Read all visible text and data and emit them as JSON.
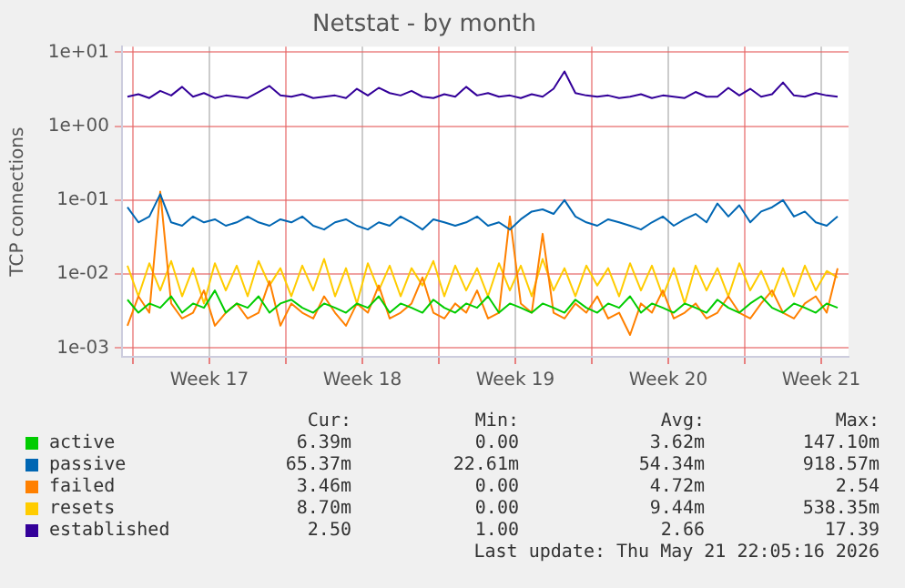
{
  "chart_data": {
    "type": "line",
    "title": "Netstat - by month",
    "ylabel": "TCP connections",
    "log": true,
    "grid": true,
    "legend": "bottom",
    "marker": "none",
    "line_style": "solid",
    "xlim": [
      "2026-04-19T12:00",
      "2026-05-22T18:00"
    ],
    "xticks": [
      {
        "value": "2026-04-20T00:00",
        "label": null
      },
      {
        "value": "2026-04-23T12:00",
        "label": "Week 17"
      },
      {
        "value": "2026-04-27T00:00",
        "label": null
      },
      {
        "value": "2026-04-30T12:00",
        "label": "Week 18"
      },
      {
        "value": "2026-05-04T00:00",
        "label": null
      },
      {
        "value": "2026-05-07T12:00",
        "label": "Week 19"
      },
      {
        "value": "2026-05-11T00:00",
        "label": null
      },
      {
        "value": "2026-05-14T12:00",
        "label": "Week 20"
      },
      {
        "value": "2026-05-18T00:00",
        "label": null
      },
      {
        "value": "2026-05-21T12:00",
        "label": "Week 21"
      }
    ],
    "ylim": [
      0.00076,
      11.9
    ],
    "yticks": [
      {
        "value": 0.001,
        "label": "1e-03"
      },
      {
        "value": 0.01,
        "label": "1e-02"
      },
      {
        "value": 0.1,
        "label": "1e-01"
      },
      {
        "value": 1,
        "label": "1e+00"
      },
      {
        "value": 10,
        "label": "1e+01"
      }
    ],
    "x": [
      "2026-04-19T18:00",
      "2026-04-20T06:00",
      "2026-04-20T18:00",
      "2026-04-21T06:00",
      "2026-04-21T18:00",
      "2026-04-22T06:00",
      "2026-04-22T18:00",
      "2026-04-23T06:00",
      "2026-04-23T18:00",
      "2026-04-24T06:00",
      "2026-04-24T18:00",
      "2026-04-25T06:00",
      "2026-04-25T18:00",
      "2026-04-26T06:00",
      "2026-04-26T18:00",
      "2026-04-27T06:00",
      "2026-04-27T18:00",
      "2026-04-28T06:00",
      "2026-04-28T18:00",
      "2026-04-29T06:00",
      "2026-04-29T18:00",
      "2026-04-30T06:00",
      "2026-04-30T18:00",
      "2026-05-01T06:00",
      "2026-05-01T18:00",
      "2026-05-02T06:00",
      "2026-05-02T18:00",
      "2026-05-03T06:00",
      "2026-05-03T18:00",
      "2026-05-04T06:00",
      "2026-05-04T18:00",
      "2026-05-05T06:00",
      "2026-05-05T18:00",
      "2026-05-06T06:00",
      "2026-05-06T18:00",
      "2026-05-07T06:00",
      "2026-05-07T18:00",
      "2026-05-08T06:00",
      "2026-05-08T18:00",
      "2026-05-09T06:00",
      "2026-05-09T18:00",
      "2026-05-10T06:00",
      "2026-05-10T18:00",
      "2026-05-11T06:00",
      "2026-05-11T18:00",
      "2026-05-12T06:00",
      "2026-05-12T18:00",
      "2026-05-13T06:00",
      "2026-05-13T18:00",
      "2026-05-14T06:00",
      "2026-05-14T18:00",
      "2026-05-15T06:00",
      "2026-05-15T18:00",
      "2026-05-16T06:00",
      "2026-05-16T18:00",
      "2026-05-17T06:00",
      "2026-05-17T18:00",
      "2026-05-18T06:00",
      "2026-05-18T18:00",
      "2026-05-19T06:00",
      "2026-05-19T18:00",
      "2026-05-20T06:00",
      "2026-05-20T18:00",
      "2026-05-21T06:00",
      "2026-05-21T18:00",
      "2026-05-22T06:00"
    ],
    "series": [
      {
        "name": "active",
        "color": "#00cc00",
        "values": [
          0.0045,
          0.003,
          0.004,
          0.0035,
          0.005,
          0.003,
          0.004,
          0.0035,
          0.006,
          0.003,
          0.004,
          0.0035,
          0.005,
          0.003,
          0.004,
          0.0045,
          0.0035,
          0.003,
          0.004,
          0.0035,
          0.003,
          0.004,
          0.0035,
          0.005,
          0.003,
          0.004,
          0.0035,
          0.003,
          0.0045,
          0.0035,
          0.003,
          0.004,
          0.0035,
          0.005,
          0.003,
          0.004,
          0.0035,
          0.003,
          0.004,
          0.0035,
          0.003,
          0.0045,
          0.0035,
          0.003,
          0.004,
          0.0035,
          0.005,
          0.003,
          0.004,
          0.0035,
          0.003,
          0.004,
          0.0035,
          0.003,
          0.0045,
          0.0035,
          0.003,
          0.004,
          0.005,
          0.0035,
          0.003,
          0.004,
          0.0035,
          0.003,
          0.004,
          0.0035
        ]
      },
      {
        "name": "passive",
        "color": "#0066b3",
        "values": [
          0.08,
          0.05,
          0.06,
          0.12,
          0.05,
          0.045,
          0.06,
          0.05,
          0.055,
          0.045,
          0.05,
          0.06,
          0.05,
          0.045,
          0.055,
          0.05,
          0.06,
          0.045,
          0.04,
          0.05,
          0.055,
          0.045,
          0.04,
          0.05,
          0.045,
          0.06,
          0.05,
          0.04,
          0.055,
          0.05,
          0.045,
          0.05,
          0.06,
          0.045,
          0.05,
          0.04,
          0.055,
          0.07,
          0.075,
          0.065,
          0.1,
          0.06,
          0.05,
          0.045,
          0.055,
          0.05,
          0.045,
          0.04,
          0.05,
          0.06,
          0.045,
          0.055,
          0.065,
          0.05,
          0.09,
          0.06,
          0.085,
          0.05,
          0.07,
          0.08,
          0.1,
          0.06,
          0.07,
          0.05,
          0.045,
          0.06
        ]
      },
      {
        "name": "failed",
        "color": "#ff8000",
        "values": [
          0.002,
          0.005,
          0.003,
          0.13,
          0.004,
          0.0025,
          0.003,
          0.006,
          0.002,
          0.003,
          0.004,
          0.0025,
          0.003,
          0.008,
          0.002,
          0.004,
          0.003,
          0.0025,
          0.005,
          0.003,
          0.002,
          0.004,
          0.003,
          0.007,
          0.0025,
          0.003,
          0.004,
          0.009,
          0.003,
          0.0025,
          0.004,
          0.003,
          0.006,
          0.0025,
          0.003,
          0.06,
          0.004,
          0.003,
          0.035,
          0.003,
          0.0025,
          0.004,
          0.003,
          0.005,
          0.0025,
          0.003,
          0.0015,
          0.004,
          0.003,
          0.006,
          0.0025,
          0.003,
          0.004,
          0.0025,
          0.003,
          0.005,
          0.003,
          0.0025,
          0.004,
          0.006,
          0.003,
          0.0025,
          0.004,
          0.005,
          0.003,
          0.012
        ]
      },
      {
        "name": "resets",
        "color": "#ffcc00",
        "values": [
          0.013,
          0.005,
          0.014,
          0.006,
          0.015,
          0.005,
          0.012,
          0.004,
          0.014,
          0.006,
          0.013,
          0.005,
          0.015,
          0.007,
          0.012,
          0.005,
          0.013,
          0.006,
          0.016,
          0.005,
          0.012,
          0.004,
          0.014,
          0.006,
          0.013,
          0.005,
          0.012,
          0.007,
          0.015,
          0.005,
          0.013,
          0.006,
          0.012,
          0.005,
          0.014,
          0.006,
          0.013,
          0.005,
          0.016,
          0.006,
          0.012,
          0.005,
          0.013,
          0.007,
          0.012,
          0.005,
          0.014,
          0.006,
          0.013,
          0.005,
          0.012,
          0.004,
          0.013,
          0.006,
          0.012,
          0.005,
          0.014,
          0.006,
          0.011,
          0.005,
          0.012,
          0.005,
          0.013,
          0.006,
          0.011,
          0.009
        ]
      },
      {
        "name": "established",
        "color": "#330099",
        "values": [
          2.5,
          2.7,
          2.4,
          3.0,
          2.6,
          3.4,
          2.5,
          2.8,
          2.4,
          2.6,
          2.5,
          2.4,
          2.9,
          3.5,
          2.6,
          2.5,
          2.7,
          2.4,
          2.5,
          2.6,
          2.4,
          3.2,
          2.6,
          3.3,
          2.8,
          2.6,
          3.0,
          2.5,
          2.4,
          2.7,
          2.5,
          3.4,
          2.6,
          2.8,
          2.5,
          2.6,
          2.4,
          2.7,
          2.5,
          3.2,
          5.5,
          2.8,
          2.6,
          2.5,
          2.6,
          2.4,
          2.5,
          2.7,
          2.4,
          2.6,
          2.5,
          2.4,
          2.9,
          2.5,
          2.5,
          3.3,
          2.6,
          3.2,
          2.5,
          2.7,
          3.9,
          2.6,
          2.5,
          2.8,
          2.6,
          2.5
        ]
      }
    ],
    "annotations": [
      "Cur:",
      "Min:",
      "Avg:",
      "Max:",
      "6.39m",
      "0.00",
      "3.62m",
      "147.10m",
      "65.37m",
      "22.61m",
      "54.34m",
      "918.57m",
      "3.46m",
      "0.00",
      "4.72m",
      "2.54",
      "8.70m",
      "0.00",
      "9.44m",
      "538.35m",
      "2.50",
      "1.00",
      "2.66",
      "17.39",
      "Last update: Thu May 21 22:05:16 2026"
    ]
  }
}
